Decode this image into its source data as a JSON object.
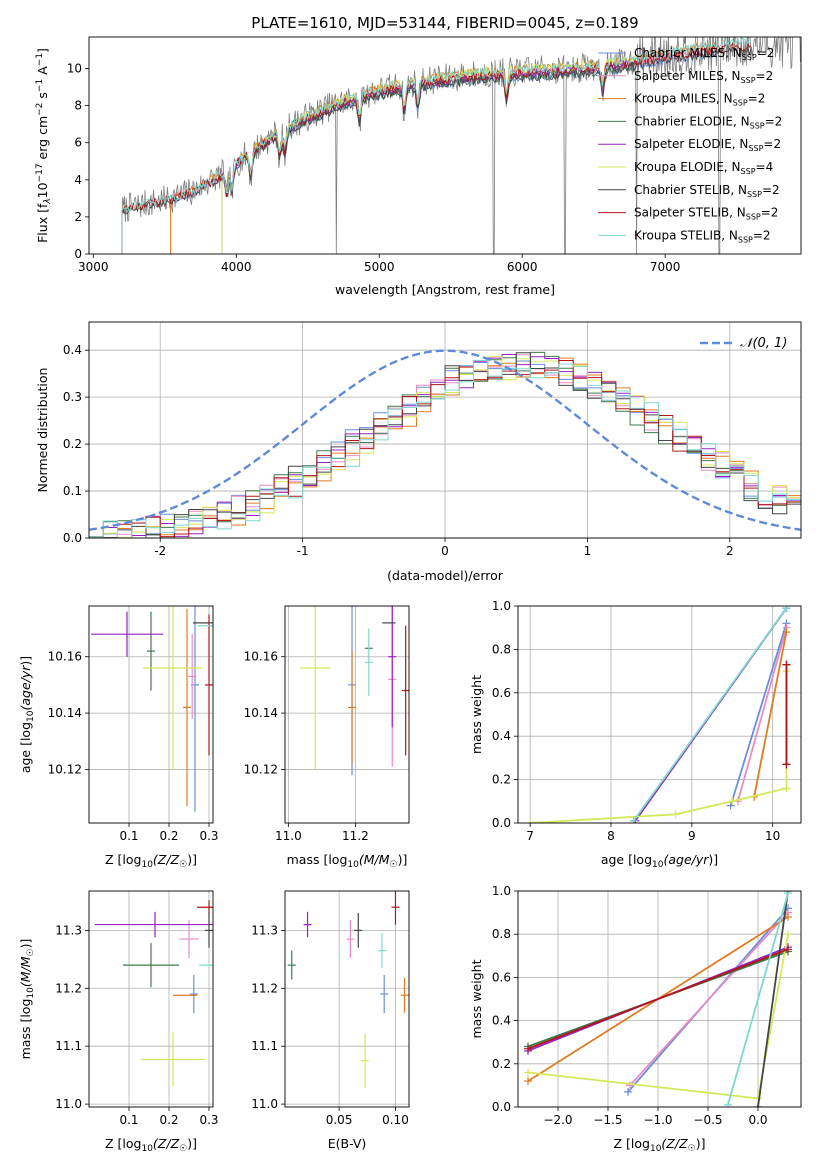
{
  "colors": {
    "Chabrier MILES": "#6a8fdc",
    "Salpeter MILES": "#e88cc4",
    "Kroupa MILES": "#e07b22",
    "Chabrier ELODIE": "#3f7a4f",
    "Salpeter ELODIE": "#9a22c0",
    "Kroupa ELODIE": "#d4e85a",
    "Chabrier STELIB": "#454545",
    "Salpeter STELIB": "#b01818",
    "Kroupa STELIB": "#7fd8d0",
    "gauss": "#5f8bd8"
  },
  "chart_data": [
    {
      "type": "line",
      "title": "PLATE=1610, MJD=53144, FIBERID=0045, z=0.189",
      "xlabel": "wavelength [Angstrom, rest frame]",
      "ylabel": "Flux [f",
      "xlim": [
        2970,
        7950
      ],
      "ylim": [
        0,
        11.7
      ],
      "xticks": [
        3000,
        4000,
        5000,
        6000,
        7000
      ],
      "yticks": [
        0,
        2,
        4,
        6,
        8,
        10
      ],
      "legend_position": "right",
      "legend": [
        {
          "name": "Chabrier MILES",
          "nssp": "2"
        },
        {
          "name": "Salpeter MILES",
          "nssp": "2"
        },
        {
          "name": "Kroupa MILES",
          "nssp": "2"
        },
        {
          "name": "Chabrier ELODIE",
          "nssp": "2"
        },
        {
          "name": "Salpeter ELODIE",
          "nssp": "2"
        },
        {
          "name": "Kroupa ELODIE",
          "nssp": "4"
        },
        {
          "name": "Chabrier STELIB",
          "nssp": "2"
        },
        {
          "name": "Salpeter STELIB",
          "nssp": "2"
        },
        {
          "name": "Kroupa STELIB",
          "nssp": "2"
        }
      ],
      "continuum": {
        "x": [
          3200,
          3300,
          3500,
          3700,
          3900,
          4100,
          4300,
          4500,
          4700,
          4900,
          5100,
          5300,
          5500,
          5700,
          5900,
          6100,
          6300,
          6500,
          6700,
          6900,
          7100,
          7300,
          7500
        ],
        "y": [
          2.4,
          2.6,
          2.9,
          3.4,
          4.3,
          5.5,
          6.6,
          7.4,
          8.1,
          8.6,
          9.0,
          9.3,
          9.5,
          9.7,
          9.8,
          9.9,
          9.95,
          10.1,
          10.3,
          10.6,
          10.9,
          11.1,
          11.3
        ]
      },
      "starts": {
        "Chabrier MILES": 3540,
        "Salpeter MILES": 3540,
        "Kroupa MILES": 3540,
        "Chabrier ELODIE": 3900,
        "Salpeter ELODIE": 3900,
        "Kroupa ELODIE": 3900,
        "Chabrier STELIB": 3200,
        "Salpeter STELIB": 3200,
        "Kroupa STELIB": 3200
      },
      "ends": {
        "Chabrier MILES": 7350,
        "Salpeter MILES": 7350,
        "Kroupa MILES": 7350,
        "Chabrier ELODIE": 6800,
        "Salpeter ELODIE": 6800,
        "Kroupa ELODIE": 6800,
        "Chabrier STELIB": 7600,
        "Salpeter STELIB": 7600,
        "Kroupa STELIB": 7600
      },
      "absorption_lines": [
        3934,
        3969,
        4102,
        4304,
        4340,
        4861,
        5175,
        5270,
        5890,
        6563
      ],
      "data_gaps": [
        4700,
        5800,
        6300,
        6800,
        7380
      ]
    },
    {
      "type": "histogram",
      "xlabel": "(data-model)/error",
      "ylabel": "Normed distribution",
      "xlim": [
        -2.5,
        2.5
      ],
      "ylim": [
        0,
        0.46
      ],
      "xticks": [
        -2,
        -1,
        0,
        1,
        2
      ],
      "yticks": [
        0.0,
        0.1,
        0.2,
        0.3,
        0.4
      ],
      "legend": [
        {
          "name": "𝒩(0, 1)",
          "style": "dashed"
        }
      ],
      "legend_position": "top-right",
      "gaussian": {
        "mean": 0,
        "sigma": 1
      },
      "bins": {
        "start": -2.5,
        "width": 0.1,
        "count": 50
      },
      "model_shape": {
        "mean": 0.55,
        "sigma": 1.05,
        "peak": 0.37
      }
    },
    {
      "type": "errorbar",
      "xlabel": "Z [log",
      "ylabel": "age  [log",
      "xlim": [
        0.0,
        0.31
      ],
      "ylim": [
        10.101,
        10.178
      ],
      "xticks": [
        0.1,
        0.2,
        0.3
      ],
      "yticks": [
        10.12,
        10.14,
        10.16
      ],
      "points": [
        {
          "s": "Chabrier MILES",
          "x": 0.265,
          "xerr": 0.0,
          "y": 10.15,
          "yerr": 0.045
        },
        {
          "s": "Salpeter MILES",
          "x": 0.258,
          "xerr": 0.0,
          "y": 10.153,
          "yerr": 0.015
        },
        {
          "s": "Kroupa MILES",
          "x": 0.245,
          "xerr": 0.0,
          "y": 10.142,
          "yerr": 0.035
        },
        {
          "s": "Chabrier ELODIE",
          "x": 0.155,
          "xerr": 0.0,
          "y": 10.162,
          "yerr": 0.014
        },
        {
          "s": "Salpeter ELODIE",
          "x": 0.095,
          "xerr": 0.09,
          "y": 10.168,
          "yerr": 0.008
        },
        {
          "s": "Kroupa ELODIE",
          "x": 0.21,
          "xerr": 0.075,
          "y": 10.156,
          "yerr": 0.036
        },
        {
          "s": "Chabrier STELIB",
          "x": 0.29,
          "xerr": 0.03,
          "y": 10.172,
          "yerr": 0.0
        },
        {
          "s": "Salpeter STELIB",
          "x": 0.3,
          "xerr": 0.0,
          "y": 10.15,
          "yerr": 0.025
        },
        {
          "s": "Kroupa STELIB",
          "x": 0.297,
          "xerr": 0.025,
          "y": 10.171,
          "yerr": 0.0
        }
      ]
    },
    {
      "type": "errorbar",
      "xlabel": "mass [log",
      "ylabel": "",
      "xlim": [
        10.99,
        11.36
      ],
      "ylim": [
        10.101,
        10.178
      ],
      "xticks": [
        11.0,
        11.2
      ],
      "yticks": [
        10.12,
        10.14,
        10.16
      ],
      "points": [
        {
          "s": "Chabrier MILES",
          "x": 11.19,
          "xerr": 0.0,
          "y": 10.15,
          "yerr": 0.032
        },
        {
          "s": "Salpeter MILES",
          "x": 11.31,
          "xerr": 0.0,
          "y": 10.152,
          "yerr": 0.031
        },
        {
          "s": "Kroupa MILES",
          "x": 11.19,
          "xerr": 0.0,
          "y": 10.142,
          "yerr": 0.02
        },
        {
          "s": "Chabrier ELODIE",
          "x": 11.24,
          "xerr": 0.0,
          "y": 10.163,
          "yerr": 0.0
        },
        {
          "s": "Salpeter ELODIE",
          "x": 11.31,
          "xerr": 0.0,
          "y": 10.16,
          "yerr": 0.025
        },
        {
          "s": "Kroupa ELODIE",
          "x": 11.08,
          "xerr": 0.045,
          "y": 10.156,
          "yerr": 0.036
        },
        {
          "s": "Chabrier STELIB",
          "x": 11.3,
          "xerr": 0.02,
          "y": 10.172,
          "yerr": 0.0
        },
        {
          "s": "Salpeter STELIB",
          "x": 11.35,
          "xerr": 0.0,
          "y": 10.148,
          "yerr": 0.023
        },
        {
          "s": "Kroupa STELIB",
          "x": 11.24,
          "xerr": 0.0,
          "y": 10.158,
          "yerr": 0.012
        }
      ]
    },
    {
      "type": "line",
      "xlabel": "age  [log",
      "ylabel": "mass weight",
      "xlim": [
        6.85,
        10.35
      ],
      "ylim": [
        0.0,
        1.0
      ],
      "xticks": [
        7,
        8,
        9,
        10
      ],
      "yticks": [
        0.0,
        0.2,
        0.4,
        0.6,
        0.8,
        1.0
      ],
      "series": [
        {
          "s": "Chabrier MILES",
          "x": [
            9.48,
            10.17
          ],
          "y": [
            0.08,
            0.92
          ]
        },
        {
          "s": "Salpeter MILES",
          "x": [
            9.57,
            10.17
          ],
          "y": [
            0.1,
            0.9
          ]
        },
        {
          "s": "Kroupa MILES",
          "x": [
            9.77,
            10.17
          ],
          "y": [
            0.12,
            0.88
          ]
        },
        {
          "s": "Chabrier ELODIE",
          "x": [
            8.3,
            10.17
          ],
          "y": [
            0.01,
            0.99
          ]
        },
        {
          "s": "Salpeter ELODIE",
          "x": [
            8.3,
            10.17
          ],
          "y": [
            0.01,
            0.99
          ]
        },
        {
          "s": "Kroupa ELODIE",
          "x": [
            7.0,
            8.8,
            9.5,
            10.17,
            10.17
          ],
          "y": [
            0.0,
            0.04,
            0.1,
            0.16,
            0.7
          ]
        },
        {
          "s": "Chabrier STELIB",
          "x": [
            10.17,
            10.17
          ],
          "y": [
            0.27,
            0.73
          ]
        },
        {
          "s": "Salpeter STELIB",
          "x": [
            10.17,
            10.17
          ],
          "y": [
            0.27,
            0.73
          ]
        },
        {
          "s": "Kroupa STELIB",
          "x": [
            8.28,
            10.17
          ],
          "y": [
            0.01,
            0.99
          ]
        }
      ]
    },
    {
      "type": "errorbar",
      "xlabel": "Z [log",
      "ylabel": "mass [log",
      "xlim": [
        0.0,
        0.31
      ],
      "ylim": [
        10.995,
        11.368
      ],
      "xticks": [
        0.1,
        0.2,
        0.3
      ],
      "yticks": [
        11.0,
        11.1,
        11.2,
        11.3
      ],
      "points": [
        {
          "s": "Chabrier MILES",
          "x": 0.262,
          "xerr": 0.0,
          "y": 11.19,
          "yerr": 0.033
        },
        {
          "s": "Salpeter MILES",
          "x": 0.25,
          "xerr": 0.025,
          "y": 11.285,
          "yerr": 0.033
        },
        {
          "s": "Kroupa MILES",
          "x": 0.24,
          "xerr": 0.03,
          "y": 11.188,
          "yerr": 0.0
        },
        {
          "s": "Chabrier ELODIE",
          "x": 0.155,
          "xerr": 0.07,
          "y": 11.24,
          "yerr": 0.038
        },
        {
          "s": "Salpeter ELODIE",
          "x": 0.165,
          "xerr": 0.15,
          "y": 11.31,
          "yerr": 0.022
        },
        {
          "s": "Kroupa ELODIE",
          "x": 0.21,
          "xerr": 0.08,
          "y": 11.077,
          "yerr": 0.047
        },
        {
          "s": "Chabrier STELIB",
          "x": 0.3,
          "xerr": 0.0,
          "y": 11.3,
          "yerr": 0.03
        },
        {
          "s": "Salpeter STELIB",
          "x": 0.3,
          "xerr": 0.03,
          "y": 11.34,
          "yerr": 0.012
        },
        {
          "s": "Kroupa STELIB",
          "x": 0.295,
          "xerr": 0.02,
          "y": 11.24,
          "yerr": 0.0
        }
      ]
    },
    {
      "type": "errorbar",
      "xlabel": "E(B-V)",
      "ylabel": "",
      "xlim": [
        0.002,
        0.112
      ],
      "ylim": [
        10.995,
        11.368
      ],
      "xticks": [
        0.05,
        0.1
      ],
      "yticks": [
        11.0,
        11.1,
        11.2,
        11.3
      ],
      "points": [
        {
          "s": "Chabrier MILES",
          "x": 0.09,
          "xerr": 0.0,
          "y": 11.19,
          "yerr": 0.033
        },
        {
          "s": "Salpeter MILES",
          "x": 0.06,
          "xerr": 0.0,
          "y": 11.285,
          "yerr": 0.033
        },
        {
          "s": "Kroupa MILES",
          "x": 0.108,
          "xerr": 0.0,
          "y": 11.188,
          "yerr": 0.03
        },
        {
          "s": "Chabrier ELODIE",
          "x": 0.008,
          "xerr": 0.0,
          "y": 11.24,
          "yerr": 0.025
        },
        {
          "s": "Salpeter ELODIE",
          "x": 0.022,
          "xerr": 0.0,
          "y": 11.31,
          "yerr": 0.022
        },
        {
          "s": "Kroupa ELODIE",
          "x": 0.073,
          "xerr": 0.0,
          "y": 11.075,
          "yerr": 0.047
        },
        {
          "s": "Chabrier STELIB",
          "x": 0.067,
          "xerr": 0.0,
          "y": 11.3,
          "yerr": 0.03
        },
        {
          "s": "Salpeter STELIB",
          "x": 0.1,
          "xerr": 0.0,
          "y": 11.34,
          "yerr": 0.03
        },
        {
          "s": "Kroupa STELIB",
          "x": 0.088,
          "xerr": 0.0,
          "y": 11.265,
          "yerr": 0.03
        }
      ]
    },
    {
      "type": "line",
      "xlabel": "Z [log",
      "ylabel": "mass weight",
      "xlim": [
        -2.4,
        0.43
      ],
      "ylim": [
        0.0,
        1.0
      ],
      "xticks": [
        -2.0,
        -1.5,
        -1.0,
        -0.5,
        0.0
      ],
      "yticks": [
        0.0,
        0.2,
        0.4,
        0.6,
        0.8,
        1.0
      ],
      "series": [
        {
          "s": "Chabrier MILES",
          "x": [
            -1.3,
            0.3
          ],
          "y": [
            0.07,
            0.92
          ]
        },
        {
          "s": "Salpeter MILES",
          "x": [
            -1.28,
            0.3
          ],
          "y": [
            0.1,
            0.9
          ]
        },
        {
          "s": "Kroupa MILES",
          "x": [
            -2.3,
            0.3
          ],
          "y": [
            0.12,
            0.88
          ]
        },
        {
          "s": "Chabrier ELODIE",
          "x": [
            -2.3,
            0.3
          ],
          "y": [
            0.28,
            0.72
          ]
        },
        {
          "s": "Salpeter ELODIE",
          "x": [
            -2.3,
            0.3
          ],
          "y": [
            0.26,
            0.74
          ]
        },
        {
          "s": "Kroupa ELODIE",
          "x": [
            -2.3,
            0.0,
            0.3
          ],
          "y": [
            0.16,
            0.04,
            0.8
          ]
        },
        {
          "s": "Chabrier STELIB",
          "x": [
            0.0,
            0.3
          ],
          "y": [
            0.0,
            1.0
          ]
        },
        {
          "s": "Salpeter STELIB",
          "x": [
            -2.3,
            0.3
          ],
          "y": [
            0.27,
            0.73
          ]
        },
        {
          "s": "Kroupa STELIB",
          "x": [
            -0.3,
            0.3
          ],
          "y": [
            0.01,
            0.99
          ]
        }
      ]
    }
  ]
}
